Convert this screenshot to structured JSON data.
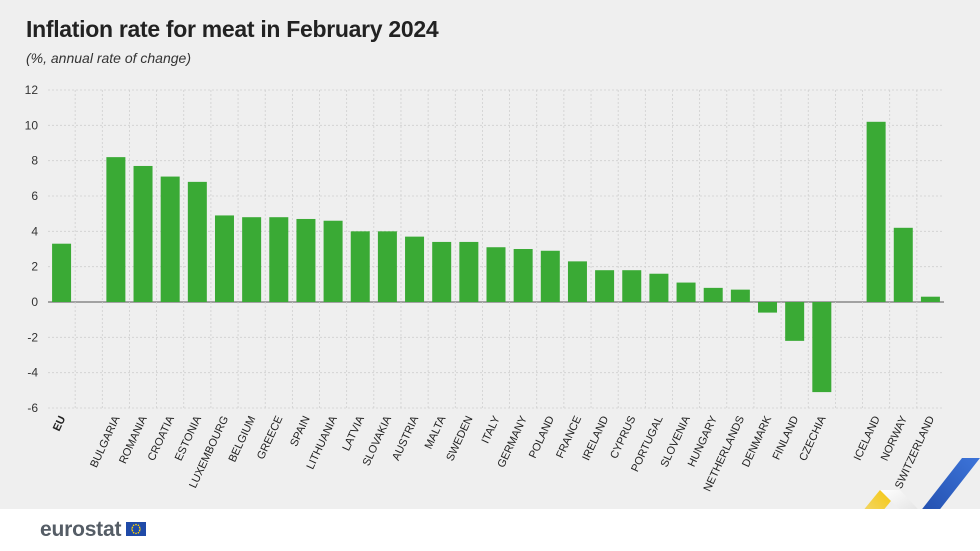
{
  "page": {
    "title": "Inflation rate for meat in February 2024",
    "subtitle": "(%, annual rate of change)",
    "logo": "eurostat",
    "colors": {
      "bar": "#3aaa35",
      "grid": "#cfcfcf",
      "axis": "#555555",
      "accent_blue": "#1f4aa8",
      "accent_yellow": "#f5c400"
    }
  },
  "chart_data": {
    "type": "bar",
    "title": "Inflation rate for meat in February 2024",
    "subtitle": "(%, annual rate of change)",
    "xlabel": "",
    "ylabel": "",
    "ylim": [
      -6,
      12
    ],
    "yticks": [
      -6,
      -4,
      -2,
      0,
      2,
      4,
      6,
      8,
      10,
      12
    ],
    "categories": [
      "EU",
      "",
      "BULGARIA",
      "ROMANIA",
      "CROATIA",
      "ESTONIA",
      "LUXEMBOURG",
      "BELGIUM",
      "GREECE",
      "SPAIN",
      "LITHUANIA",
      "LATVIA",
      "SLOVAKIA",
      "AUSTRIA",
      "MALTA",
      "SWEDEN",
      "ITALY",
      "GERMANY",
      "POLAND",
      "FRANCE",
      "IRELAND",
      "CYPRUS",
      "PORTUGAL",
      "SLOVENIA",
      "HUNGARY",
      "NETHERLANDS",
      "DENMARK",
      "FINLAND",
      "CZECHIA",
      "",
      "ICELAND",
      "NORWAY",
      "SWITZERLAND"
    ],
    "values": [
      3.3,
      null,
      8.2,
      7.7,
      7.1,
      6.8,
      4.9,
      4.8,
      4.8,
      4.7,
      4.6,
      4.0,
      4.0,
      3.7,
      3.4,
      3.4,
      3.1,
      3.0,
      2.9,
      2.3,
      1.8,
      1.8,
      1.6,
      1.1,
      0.8,
      0.7,
      -0.6,
      -2.2,
      -5.1,
      null,
      10.2,
      4.2,
      0.3
    ],
    "bold_categories": [
      "EU"
    ],
    "grid": true,
    "legend": "none"
  }
}
